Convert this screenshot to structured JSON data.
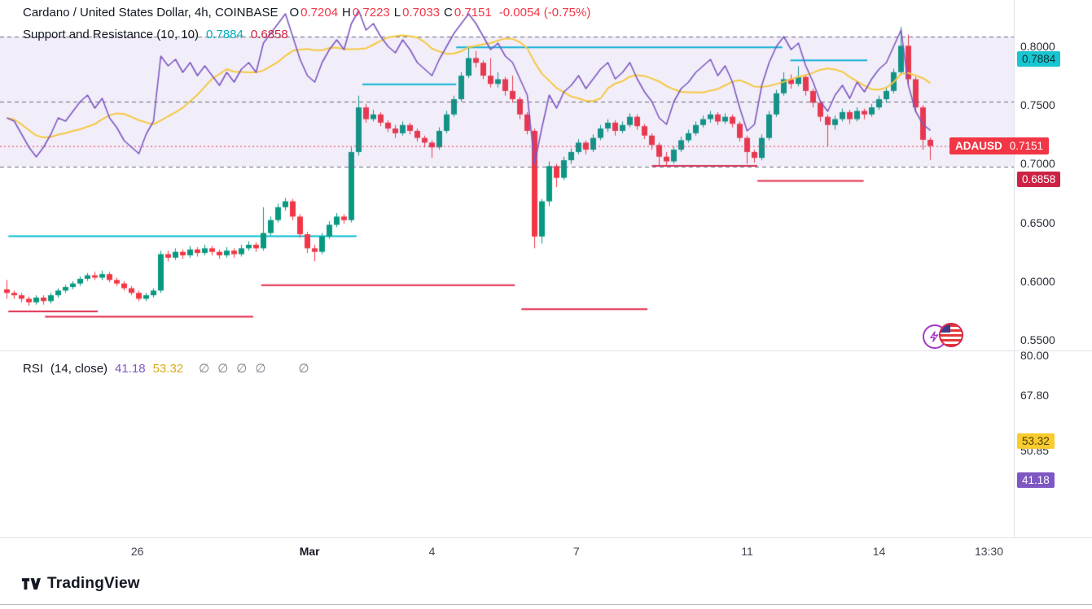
{
  "header": {
    "symbol_line": {
      "title": "Cardano / United States Dollar, 4h, COINBASE",
      "ohlc": [
        {
          "label": "O",
          "value": "0.7204"
        },
        {
          "label": "H",
          "value": "0.7223"
        },
        {
          "label": "L",
          "value": "0.7033"
        },
        {
          "label": "C",
          "value": "0.7151"
        }
      ],
      "change": "-0.0054 (-0.75%)"
    },
    "sr_line": {
      "title": "Support and Resistance (10, 10)",
      "resistance_value": "0.7884",
      "support_value": "0.6858"
    }
  },
  "rsi_legend": {
    "title": "RSI",
    "params": "(14, close)",
    "value_rsi": "41.18",
    "value_ma": "53.32",
    "empties": [
      "∅",
      "∅",
      "∅",
      "∅"
    ],
    "empty_far": "∅"
  },
  "price_axis": {
    "ticks": [
      "0.8000",
      "0.7500",
      "0.7000",
      "0.6500",
      "0.6000",
      "0.5500"
    ],
    "tick_values": [
      0.8,
      0.75,
      0.7,
      0.65,
      0.6,
      0.55
    ],
    "badges": [
      {
        "name": "resistance-price-badge",
        "text": "0.7884",
        "value": 0.7884,
        "bg": "#18c5d0",
        "fg": "#0b3236"
      },
      {
        "name": "last-price-badge",
        "symbol": "ADAUSD",
        "text": "0.7151",
        "value": 0.7151,
        "bg": "#f23645",
        "fg": "#ffffff"
      },
      {
        "name": "support-price-badge",
        "text": "0.6858",
        "value": 0.6858,
        "bg": "#cc2244",
        "fg": "#ffffff"
      }
    ]
  },
  "rsi_axis": {
    "ticks": [
      {
        "text": "80.00",
        "value": 80
      },
      {
        "text": "67.80",
        "value": 67.8
      },
      {
        "text": "50.85",
        "value": 50.85
      }
    ],
    "badges": [
      {
        "name": "rsi-ma-badge",
        "text": "53.32",
        "value": 53.32,
        "bg": "#f8cb2e",
        "fg": "#4a3b00"
      },
      {
        "name": "rsi-value-badge",
        "text": "41.18",
        "value": 41.18,
        "bg": "#7e57c2",
        "fg": "#ffffff"
      }
    ]
  },
  "time_axis": {
    "labels": [
      {
        "text": "26",
        "i": 17.8
      },
      {
        "text": "Mar",
        "i": 41.3,
        "major": true
      },
      {
        "text": "4",
        "i": 58
      },
      {
        "text": "7",
        "i": 77.7
      },
      {
        "text": "11",
        "i": 101
      },
      {
        "text": "14",
        "i": 119
      },
      {
        "text": "13:30",
        "i": 134
      }
    ]
  },
  "footer": {
    "brand": "TradingView"
  },
  "colors": {
    "up": "#089981",
    "down": "#f23645",
    "resistance": "#00bcd4",
    "support": "#e0294a",
    "last_price_line": "#f23645",
    "rsi_line": "#7e57c2",
    "rsi_ma_line": "#f4c842",
    "band_fill": "rgba(126,87,194,0.10)",
    "band_line": "#66697a"
  },
  "chart_data": [
    {
      "type": "candlestick",
      "name": "ADAUSD 4h price",
      "ylim": [
        0.5417,
        0.8395
      ],
      "y_ticks": [
        0.8,
        0.75,
        0.7,
        0.65,
        0.6,
        0.55
      ],
      "last_price": 0.7151,
      "resistance_lines": [
        {
          "price": 0.6386,
          "from": 0.2,
          "to": 47.7
        },
        {
          "price": 0.768,
          "from": 48.5,
          "to": 61.3
        },
        {
          "price": 0.7995,
          "from": 61.3,
          "to": 105.8
        },
        {
          "price": 0.7884,
          "from": 106.9,
          "to": 117.4
        }
      ],
      "support_lines": [
        {
          "price": 0.5745,
          "from": 0.2,
          "to": 12.4
        },
        {
          "price": 0.57,
          "from": 5.2,
          "to": 33.6
        },
        {
          "price": 0.597,
          "from": 34.7,
          "to": 69.3
        },
        {
          "price": 0.5765,
          "from": 70.2,
          "to": 87.4
        },
        {
          "price": 0.6985,
          "from": 88.0,
          "to": 102.4
        },
        {
          "price": 0.6858,
          "from": 102.4,
          "to": 116.9
        }
      ],
      "ohlc": [
        [
          0.593,
          0.601,
          0.585,
          0.59
        ],
        [
          0.59,
          0.592,
          0.585,
          0.588
        ],
        [
          0.588,
          0.59,
          0.582,
          0.585
        ],
        [
          0.585,
          0.587,
          0.579,
          0.582
        ],
        [
          0.582,
          0.588,
          0.58,
          0.586
        ],
        [
          0.586,
          0.588,
          0.58,
          0.583
        ],
        [
          0.583,
          0.59,
          0.581,
          0.588
        ],
        [
          0.588,
          0.594,
          0.586,
          0.592
        ],
        [
          0.592,
          0.597,
          0.59,
          0.595
        ],
        [
          0.595,
          0.6,
          0.593,
          0.598
        ],
        [
          0.598,
          0.604,
          0.596,
          0.602
        ],
        [
          0.602,
          0.607,
          0.6,
          0.605
        ],
        [
          0.605,
          0.608,
          0.601,
          0.603
        ],
        [
          0.603,
          0.609,
          0.601,
          0.606
        ],
        [
          0.606,
          0.608,
          0.599,
          0.601
        ],
        [
          0.601,
          0.603,
          0.596,
          0.598
        ],
        [
          0.598,
          0.6,
          0.592,
          0.594
        ],
        [
          0.594,
          0.596,
          0.588,
          0.59
        ],
        [
          0.59,
          0.592,
          0.583,
          0.585
        ],
        [
          0.585,
          0.59,
          0.583,
          0.588
        ],
        [
          0.588,
          0.594,
          0.586,
          0.592
        ],
        [
          0.592,
          0.626,
          0.59,
          0.623
        ],
        [
          0.623,
          0.626,
          0.617,
          0.62
        ],
        [
          0.62,
          0.628,
          0.618,
          0.625
        ],
        [
          0.625,
          0.627,
          0.619,
          0.622
        ],
        [
          0.622,
          0.63,
          0.62,
          0.627
        ],
        [
          0.627,
          0.629,
          0.621,
          0.624
        ],
        [
          0.624,
          0.631,
          0.622,
          0.628
        ],
        [
          0.628,
          0.63,
          0.622,
          0.625
        ],
        [
          0.625,
          0.627,
          0.619,
          0.622
        ],
        [
          0.622,
          0.629,
          0.62,
          0.626
        ],
        [
          0.626,
          0.628,
          0.62,
          0.623
        ],
        [
          0.623,
          0.631,
          0.621,
          0.628
        ],
        [
          0.628,
          0.634,
          0.626,
          0.631
        ],
        [
          0.631,
          0.633,
          0.625,
          0.628
        ],
        [
          0.628,
          0.663,
          0.626,
          0.641
        ],
        [
          0.641,
          0.655,
          0.639,
          0.652
        ],
        [
          0.652,
          0.666,
          0.65,
          0.663
        ],
        [
          0.663,
          0.671,
          0.66,
          0.668
        ],
        [
          0.668,
          0.67,
          0.652,
          0.655
        ],
        [
          0.655,
          0.657,
          0.637,
          0.64
        ],
        [
          0.64,
          0.642,
          0.624,
          0.628
        ],
        [
          0.628,
          0.631,
          0.617,
          0.625
        ],
        [
          0.625,
          0.641,
          0.623,
          0.638
        ],
        [
          0.638,
          0.651,
          0.636,
          0.648
        ],
        [
          0.648,
          0.658,
          0.646,
          0.655
        ],
        [
          0.655,
          0.657,
          0.649,
          0.652
        ],
        [
          0.652,
          0.714,
          0.65,
          0.71
        ],
        [
          0.71,
          0.758,
          0.707,
          0.748
        ],
        [
          0.748,
          0.751,
          0.735,
          0.738
        ],
        [
          0.738,
          0.746,
          0.736,
          0.742
        ],
        [
          0.742,
          0.744,
          0.732,
          0.735
        ],
        [
          0.735,
          0.737,
          0.727,
          0.73
        ],
        [
          0.73,
          0.733,
          0.722,
          0.726
        ],
        [
          0.726,
          0.736,
          0.724,
          0.733
        ],
        [
          0.733,
          0.735,
          0.725,
          0.728
        ],
        [
          0.728,
          0.73,
          0.719,
          0.722
        ],
        [
          0.722,
          0.724,
          0.714,
          0.718
        ],
        [
          0.718,
          0.72,
          0.705,
          0.714
        ],
        [
          0.714,
          0.731,
          0.712,
          0.728
        ],
        [
          0.728,
          0.745,
          0.726,
          0.742
        ],
        [
          0.742,
          0.758,
          0.74,
          0.755
        ],
        [
          0.755,
          0.778,
          0.753,
          0.775
        ],
        [
          0.775,
          0.8,
          0.773,
          0.79
        ],
        [
          0.79,
          0.796,
          0.782,
          0.786
        ],
        [
          0.786,
          0.788,
          0.772,
          0.775
        ],
        [
          0.775,
          0.79,
          0.765,
          0.768
        ],
        [
          0.768,
          0.778,
          0.765,
          0.772
        ],
        [
          0.772,
          0.774,
          0.758,
          0.762
        ],
        [
          0.762,
          0.775,
          0.752,
          0.755
        ],
        [
          0.755,
          0.757,
          0.738,
          0.742
        ],
        [
          0.742,
          0.744,
          0.725,
          0.728
        ],
        [
          0.728,
          0.73,
          0.628,
          0.638
        ],
        [
          0.638,
          0.67,
          0.632,
          0.668
        ],
        [
          0.668,
          0.702,
          0.664,
          0.698
        ],
        [
          0.698,
          0.7,
          0.68,
          0.688
        ],
        [
          0.688,
          0.706,
          0.686,
          0.703
        ],
        [
          0.703,
          0.713,
          0.7,
          0.71
        ],
        [
          0.71,
          0.721,
          0.708,
          0.718
        ],
        [
          0.718,
          0.72,
          0.708,
          0.712
        ],
        [
          0.712,
          0.725,
          0.71,
          0.722
        ],
        [
          0.722,
          0.733,
          0.72,
          0.73
        ],
        [
          0.73,
          0.738,
          0.727,
          0.735
        ],
        [
          0.735,
          0.737,
          0.724,
          0.728
        ],
        [
          0.728,
          0.736,
          0.726,
          0.733
        ],
        [
          0.733,
          0.743,
          0.731,
          0.74
        ],
        [
          0.74,
          0.742,
          0.729,
          0.732
        ],
        [
          0.732,
          0.734,
          0.721,
          0.724
        ],
        [
          0.724,
          0.726,
          0.712,
          0.716
        ],
        [
          0.716,
          0.718,
          0.698,
          0.706
        ],
        [
          0.706,
          0.71,
          0.699,
          0.702
        ],
        [
          0.702,
          0.715,
          0.7,
          0.712
        ],
        [
          0.712,
          0.723,
          0.71,
          0.72
        ],
        [
          0.72,
          0.729,
          0.718,
          0.726
        ],
        [
          0.726,
          0.736,
          0.724,
          0.733
        ],
        [
          0.733,
          0.741,
          0.731,
          0.738
        ],
        [
          0.738,
          0.745,
          0.735,
          0.742
        ],
        [
          0.742,
          0.744,
          0.733,
          0.736
        ],
        [
          0.736,
          0.743,
          0.734,
          0.74
        ],
        [
          0.74,
          0.742,
          0.731,
          0.734
        ],
        [
          0.734,
          0.736,
          0.719,
          0.722
        ],
        [
          0.722,
          0.724,
          0.7,
          0.71
        ],
        [
          0.71,
          0.712,
          0.701,
          0.705
        ],
        [
          0.705,
          0.725,
          0.703,
          0.722
        ],
        [
          0.722,
          0.745,
          0.72,
          0.742
        ],
        [
          0.742,
          0.763,
          0.74,
          0.76
        ],
        [
          0.76,
          0.778,
          0.758,
          0.772
        ],
        [
          0.772,
          0.776,
          0.764,
          0.768
        ],
        [
          0.768,
          0.783,
          0.766,
          0.774
        ],
        [
          0.774,
          0.776,
          0.758,
          0.762
        ],
        [
          0.762,
          0.764,
          0.748,
          0.752
        ],
        [
          0.752,
          0.754,
          0.736,
          0.74
        ],
        [
          0.74,
          0.742,
          0.715,
          0.733
        ],
        [
          0.733,
          0.741,
          0.729,
          0.738
        ],
        [
          0.738,
          0.747,
          0.736,
          0.744
        ],
        [
          0.744,
          0.746,
          0.734,
          0.738
        ],
        [
          0.738,
          0.748,
          0.736,
          0.745
        ],
        [
          0.745,
          0.747,
          0.738,
          0.742
        ],
        [
          0.742,
          0.751,
          0.74,
          0.748
        ],
        [
          0.748,
          0.758,
          0.746,
          0.755
        ],
        [
          0.755,
          0.765,
          0.752,
          0.762
        ],
        [
          0.762,
          0.781,
          0.76,
          0.778
        ],
        [
          0.778,
          0.8166,
          0.776,
          0.8005
        ],
        [
          0.8005,
          0.81,
          0.768,
          0.772
        ],
        [
          0.772,
          0.774,
          0.744,
          0.748
        ],
        [
          0.748,
          0.75,
          0.712,
          0.7204
        ],
        [
          0.7204,
          0.7223,
          0.7033,
          0.7151
        ]
      ]
    },
    {
      "type": "line",
      "name": "RSI (14, close)",
      "ylim": [
        25,
        81
      ],
      "bands": {
        "upper": 70,
        "middle": 50,
        "lower": 30
      },
      "ma_window": 10,
      "last_value": 41.18,
      "ma_last_value": 53.32,
      "values": [
        45,
        44,
        40,
        36,
        33,
        36,
        40,
        45,
        44,
        47,
        50,
        52,
        48,
        51,
        45,
        42,
        38,
        36,
        34,
        40,
        44,
        64,
        61,
        63,
        59,
        62,
        58,
        61,
        58,
        55,
        59,
        56,
        60,
        62,
        59,
        68,
        71,
        74,
        77,
        70,
        63,
        58,
        56,
        62,
        66,
        69,
        66,
        74,
        78,
        72,
        74,
        70,
        67,
        65,
        69,
        66,
        62,
        60,
        58,
        63,
        67,
        71,
        74,
        77,
        74,
        70,
        66,
        68,
        64,
        62,
        57,
        52,
        31,
        42,
        52,
        48,
        53,
        55,
        58,
        54,
        57,
        60,
        62,
        57,
        59,
        62,
        57,
        53,
        50,
        45,
        43,
        50,
        54,
        56,
        59,
        61,
        63,
        58,
        61,
        56,
        48,
        41,
        43,
        55,
        62,
        67,
        70,
        66,
        68,
        61,
        56,
        50,
        47,
        52,
        55,
        51,
        56,
        53,
        57,
        60,
        62,
        67,
        72,
        55,
        47,
        43,
        41.18
      ]
    }
  ]
}
